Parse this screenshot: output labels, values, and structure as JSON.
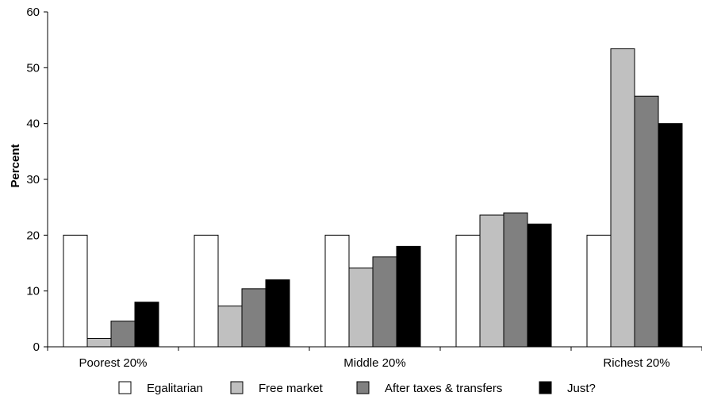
{
  "chart_data": {
    "type": "bar",
    "title": "",
    "xlabel": "",
    "ylabel": "Percent",
    "ylim": [
      0,
      60
    ],
    "yticks": [
      0,
      10,
      20,
      30,
      40,
      50,
      60
    ],
    "categories": [
      "Poorest 20%",
      "",
      "Middle 20%",
      "",
      "Richest 20%"
    ],
    "series": [
      {
        "name": "Egalitarian",
        "color": "#ffffff",
        "values": [
          20,
          20,
          20,
          20,
          20
        ]
      },
      {
        "name": "Free market",
        "color": "#c0c0c0",
        "values": [
          1.5,
          7.3,
          14.1,
          23.6,
          53.4
        ]
      },
      {
        "name": "After taxes & transfers",
        "color": "#808080",
        "values": [
          4.6,
          10.4,
          16.1,
          24,
          44.9
        ]
      },
      {
        "name": "Just?",
        "color": "#000000",
        "values": [
          8,
          12,
          18,
          22,
          40
        ]
      }
    ],
    "legend_position": "bottom",
    "grid": false
  }
}
